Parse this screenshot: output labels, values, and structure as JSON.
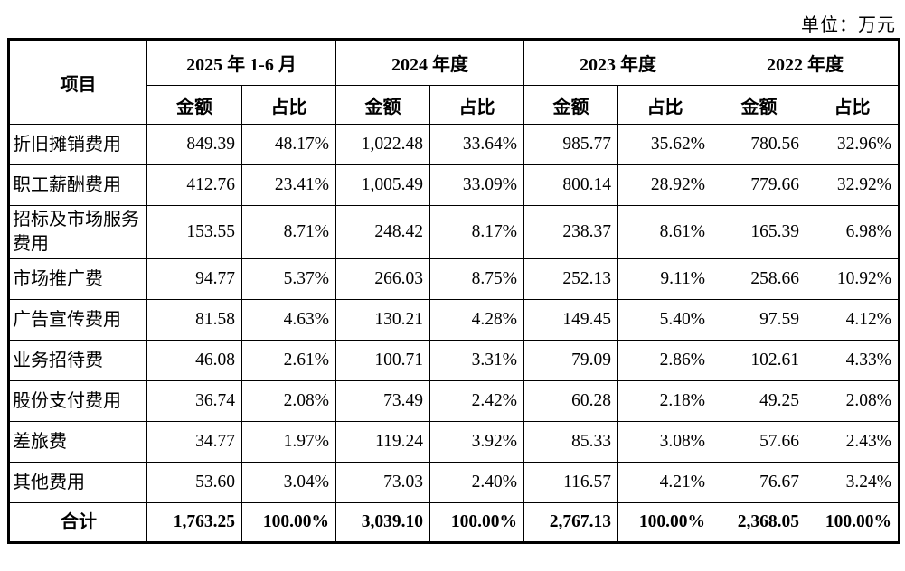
{
  "page": {
    "unit_label": "单位：万元"
  },
  "table": {
    "item_header": "项目",
    "amount_header": "金额",
    "ratio_header": "占比",
    "periods": [
      "2025 年 1-6 月",
      "2024 年度",
      "2023 年度",
      "2022 年度"
    ],
    "rows": [
      {
        "item": "折旧摊销费用",
        "values": [
          "849.39",
          "48.17%",
          "1,022.48",
          "33.64%",
          "985.77",
          "35.62%",
          "780.56",
          "32.96%"
        ]
      },
      {
        "item": "职工薪酬费用",
        "values": [
          "412.76",
          "23.41%",
          "1,005.49",
          "33.09%",
          "800.14",
          "28.92%",
          "779.66",
          "32.92%"
        ]
      },
      {
        "item": "招标及市场服务费用",
        "values": [
          "153.55",
          "8.71%",
          "248.42",
          "8.17%",
          "238.37",
          "8.61%",
          "165.39",
          "6.98%"
        ]
      },
      {
        "item": "市场推广费",
        "values": [
          "94.77",
          "5.37%",
          "266.03",
          "8.75%",
          "252.13",
          "9.11%",
          "258.66",
          "10.92%"
        ]
      },
      {
        "item": "广告宣传费用",
        "values": [
          "81.58",
          "4.63%",
          "130.21",
          "4.28%",
          "149.45",
          "5.40%",
          "97.59",
          "4.12%"
        ]
      },
      {
        "item": "业务招待费",
        "values": [
          "46.08",
          "2.61%",
          "100.71",
          "3.31%",
          "79.09",
          "2.86%",
          "102.61",
          "4.33%"
        ]
      },
      {
        "item": "股份支付费用",
        "values": [
          "36.74",
          "2.08%",
          "73.49",
          "2.42%",
          "60.28",
          "2.18%",
          "49.25",
          "2.08%"
        ]
      },
      {
        "item": "差旅费",
        "values": [
          "34.77",
          "1.97%",
          "119.24",
          "3.92%",
          "85.33",
          "3.08%",
          "57.66",
          "2.43%"
        ]
      },
      {
        "item": "其他费用",
        "values": [
          "53.60",
          "3.04%",
          "73.03",
          "2.40%",
          "116.57",
          "4.21%",
          "76.67",
          "3.24%"
        ]
      }
    ],
    "total_row": {
      "item": "合计",
      "values": [
        "1,763.25",
        "100.00%",
        "3,039.10",
        "100.00%",
        "2,767.13",
        "100.00%",
        "2,368.05",
        "100.00%"
      ]
    }
  }
}
